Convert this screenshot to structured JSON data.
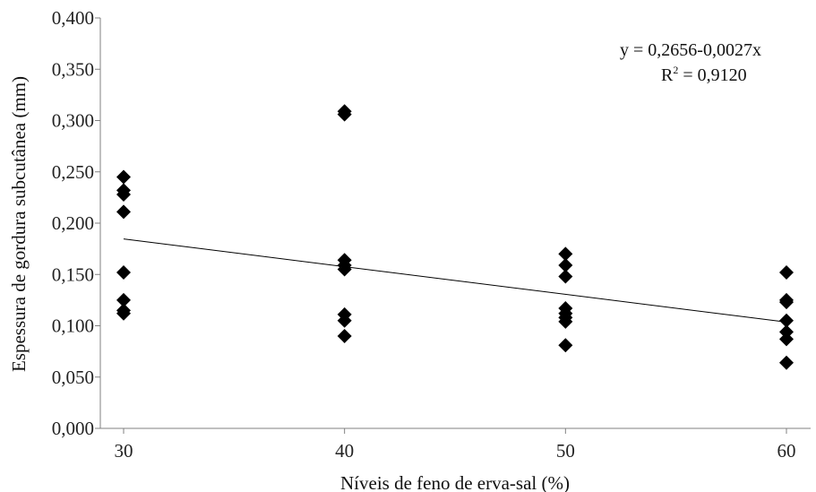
{
  "chart_data": {
    "type": "scatter",
    "title": "",
    "xlabel": "Níveis de feno de erva-sal (%)",
    "ylabel": "Espessura de gordura subcutânea (mm)",
    "x_ticks": [
      "30",
      "40",
      "50",
      "60"
    ],
    "y_ticks": [
      "0,000",
      "0,050",
      "0,100",
      "0,150",
      "0,200",
      "0,250",
      "0,300",
      "0,350",
      "0,400"
    ],
    "xlim": [
      30,
      60
    ],
    "ylim": [
      0,
      0.4
    ],
    "grid": false,
    "marker_color": "#000000",
    "points": [
      {
        "x": 30,
        "y": 0.245
      },
      {
        "x": 30,
        "y": 0.232
      },
      {
        "x": 30,
        "y": 0.228
      },
      {
        "x": 30,
        "y": 0.211
      },
      {
        "x": 30,
        "y": 0.152
      },
      {
        "x": 30,
        "y": 0.125
      },
      {
        "x": 30,
        "y": 0.115
      },
      {
        "x": 30,
        "y": 0.112
      },
      {
        "x": 40,
        "y": 0.309
      },
      {
        "x": 40,
        "y": 0.306
      },
      {
        "x": 40,
        "y": 0.164
      },
      {
        "x": 40,
        "y": 0.159
      },
      {
        "x": 40,
        "y": 0.155
      },
      {
        "x": 40,
        "y": 0.111
      },
      {
        "x": 40,
        "y": 0.105
      },
      {
        "x": 40,
        "y": 0.09
      },
      {
        "x": 50,
        "y": 0.17
      },
      {
        "x": 50,
        "y": 0.159
      },
      {
        "x": 50,
        "y": 0.148
      },
      {
        "x": 50,
        "y": 0.117
      },
      {
        "x": 50,
        "y": 0.112
      },
      {
        "x": 50,
        "y": 0.108
      },
      {
        "x": 50,
        "y": 0.104
      },
      {
        "x": 50,
        "y": 0.081
      },
      {
        "x": 60,
        "y": 0.152
      },
      {
        "x": 60,
        "y": 0.125
      },
      {
        "x": 60,
        "y": 0.123
      },
      {
        "x": 60,
        "y": 0.105
      },
      {
        "x": 60,
        "y": 0.094
      },
      {
        "x": 60,
        "y": 0.087
      },
      {
        "x": 60,
        "y": 0.064
      }
    ],
    "trendline": {
      "type": "linear",
      "intercept": 0.2656,
      "slope": -0.0027,
      "x_range": [
        30,
        60
      ]
    },
    "annotation": {
      "equation": "y =  0,2656-0,0027x",
      "r2_prefix": "R",
      "r2_sup": "2",
      "r2_value": " = 0,9120"
    }
  }
}
